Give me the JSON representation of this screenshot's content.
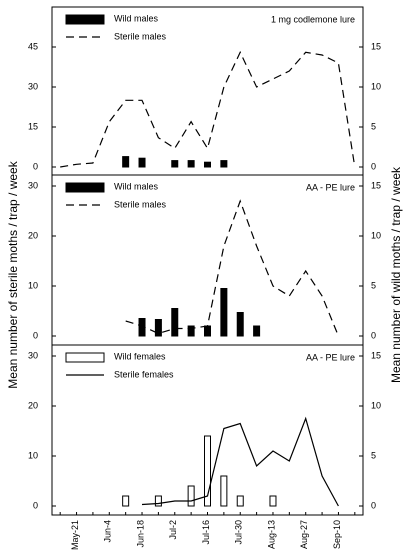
{
  "axis_labels": {
    "left": "Mean number of sterile moths / trap / week",
    "right": "Mean number of wild moths / trap / week"
  },
  "chart_data": [
    {
      "type": "combo",
      "annotation": "1 mg codlemone lure",
      "ylim": [
        -3,
        60
      ],
      "yticks": [
        0,
        15,
        30,
        45
      ],
      "y2lim": [
        -1,
        20
      ],
      "y2ticks": [
        0,
        5,
        10,
        15
      ],
      "series": [
        {
          "name": "Wild males",
          "type": "bar",
          "axis": "y2",
          "color": "#000000",
          "fill": "#000000",
          "values": [
            null,
            null,
            null,
            null,
            1.3,
            1.1,
            null,
            0.8,
            0.8,
            0.6,
            0.8,
            null,
            null,
            null,
            null,
            null,
            null,
            null,
            null
          ]
        },
        {
          "name": "Sterile males",
          "type": "line",
          "dash": true,
          "color": "#000000",
          "values": [
            0,
            1,
            1.5,
            17,
            25,
            25,
            11,
            7,
            17,
            7,
            30,
            43,
            30,
            33,
            36,
            43,
            42,
            39,
            0
          ]
        }
      ]
    },
    {
      "type": "combo",
      "annotation": "AA - PE lure",
      "ylim": [
        -1.8,
        32.2
      ],
      "yticks": [
        0,
        10,
        20,
        30
      ],
      "y2lim": [
        -0.9,
        16.1
      ],
      "y2ticks": [
        0,
        5,
        10,
        15
      ],
      "series": [
        {
          "name": "Wild males",
          "type": "bar",
          "axis": "y2",
          "color": "#000000",
          "fill": "#000000",
          "values": [
            null,
            null,
            null,
            null,
            null,
            1.75,
            1.65,
            2.75,
            1,
            1,
            4.75,
            2.35,
            1,
            null,
            null,
            null,
            null,
            null,
            null
          ]
        },
        {
          "name": "Sterile males",
          "type": "line",
          "dash": true,
          "color": "#000000",
          "values": [
            null,
            null,
            null,
            null,
            3,
            2,
            0.5,
            1.5,
            1.5,
            2,
            18,
            27,
            18,
            10,
            8,
            13,
            8,
            0,
            null
          ]
        }
      ]
    },
    {
      "type": "combo",
      "annotation": "AA - PE lure",
      "categories": [
        null,
        "May-21",
        null,
        "Jun-4",
        null,
        "Jun-18",
        null,
        "Jul-2",
        null,
        "Jul-16",
        null,
        "Jul-30",
        null,
        "Aug-13",
        null,
        "Aug-27",
        null,
        "Sep-10",
        null
      ],
      "ylim": [
        -1.8,
        32.2
      ],
      "yticks": [
        0,
        10,
        20,
        30
      ],
      "y2lim": [
        -0.9,
        16.1
      ],
      "y2ticks": [
        0,
        5,
        10,
        15
      ],
      "series": [
        {
          "name": "Wild females",
          "type": "bar",
          "axis": "y2",
          "color": "#000000",
          "fill": "none",
          "values": [
            null,
            null,
            null,
            null,
            1,
            null,
            1,
            null,
            2,
            7,
            3,
            1,
            null,
            1,
            null,
            null,
            null,
            null,
            null
          ]
        },
        {
          "name": "Sterile females",
          "type": "line",
          "dash": false,
          "color": "#000000",
          "values": [
            null,
            null,
            null,
            null,
            null,
            0.3,
            0.5,
            1,
            1,
            2,
            15.5,
            16.5,
            8,
            11,
            9,
            17.5,
            6,
            0,
            null
          ]
        }
      ]
    }
  ]
}
